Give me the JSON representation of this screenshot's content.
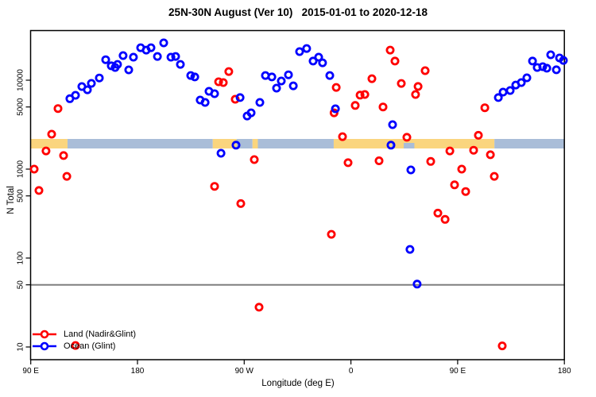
{
  "title": "25N-30N August (Ver 10)   2015-01-01 to 2020-12-18",
  "chart_data": {
    "type": "scatter",
    "title": "25N-30N August (Ver 10)   2015-01-01 to 2020-12-18",
    "xlabel": "Longitude (deg E)",
    "ylabel": "N Total",
    "x_axis": {
      "min": 90,
      "max": 540,
      "note_units": "longitude unwrapped eastward from 90E to 180 (450 deg span)",
      "ticks": [
        {
          "lon": 90,
          "label": "90 E"
        },
        {
          "lon": 180,
          "label": "180"
        },
        {
          "lon": 270,
          "label": "90 W"
        },
        {
          "lon": 360,
          "label": "0"
        },
        {
          "lon": 450,
          "label": "90 E"
        },
        {
          "lon": 540,
          "label": "180"
        }
      ]
    },
    "y_axis": {
      "log": true,
      "min": 7,
      "max": 36000,
      "ticks": [
        10,
        50,
        100,
        500,
        1000,
        5000,
        10000
      ]
    },
    "reference_line": {
      "y": 50,
      "color": "#7F7F7F"
    },
    "land_ocean_band": {
      "value_center": 2000,
      "land_color": "#FAD57E",
      "ocean_color": "#A9BDD8",
      "segments": [
        {
          "type": "land",
          "from": 90,
          "to": 121
        },
        {
          "type": "ocean",
          "from": 121,
          "to": 243.5
        },
        {
          "type": "land",
          "from": 243.5,
          "to": 263.5
        },
        {
          "type": "ocean",
          "from": 263.5,
          "to": 277
        },
        {
          "type": "land",
          "from": 277,
          "to": 281.5
        },
        {
          "type": "ocean",
          "from": 281.5,
          "to": 345.5
        },
        {
          "type": "land",
          "from": 345.5,
          "to": 481
        },
        {
          "type": "ocean",
          "from": 481,
          "to": 540
        }
      ],
      "ocean_inlets": [
        {
          "from": 394.5,
          "to": 397
        },
        {
          "from": 404.5,
          "to": 413.5
        }
      ]
    },
    "legend": {
      "position": "bottom-left"
    },
    "series": [
      {
        "name": "Land (Nadir&Glint)",
        "color": "#FF0000",
        "points": [
          [
            113.0,
            4800
          ],
          [
            107.6,
            2470
          ],
          [
            102.9,
            1600
          ],
          [
            117.7,
            1420
          ],
          [
            92.9,
            1000
          ],
          [
            120.4,
            830
          ],
          [
            96.9,
            575
          ],
          [
            257.0,
            12500
          ],
          [
            248.4,
            9600
          ],
          [
            252.4,
            9400
          ],
          [
            262.4,
            6100
          ],
          [
            278.5,
            1280
          ],
          [
            245.0,
            640
          ],
          [
            267.1,
            410
          ],
          [
            282.5,
            28
          ],
          [
            127.7,
            10.4
          ],
          [
            347.6,
            8300
          ],
          [
            345.8,
            4300
          ],
          [
            363.6,
            5200
          ],
          [
            367.7,
            6800
          ],
          [
            371.7,
            6900
          ],
          [
            377.7,
            10400
          ],
          [
            387.1,
            5000
          ],
          [
            393.1,
            21800
          ],
          [
            397.1,
            16400
          ],
          [
            402.5,
            9200
          ],
          [
            414.5,
            6900
          ],
          [
            416.6,
            8500
          ],
          [
            422.6,
            12800
          ],
          [
            352.9,
            2320
          ],
          [
            407.2,
            2280
          ],
          [
            472.9,
            4900
          ],
          [
            467.5,
            2400
          ],
          [
            443.4,
            1600
          ],
          [
            463.5,
            1630
          ],
          [
            477.6,
            1450
          ],
          [
            357.6,
            1180
          ],
          [
            383.7,
            1240
          ],
          [
            427.3,
            1220
          ],
          [
            453.4,
            1000
          ],
          [
            480.9,
            830
          ],
          [
            447.4,
            665
          ],
          [
            456.8,
            560
          ],
          [
            433.3,
            320
          ],
          [
            439.4,
            272
          ],
          [
            343.5,
            185
          ],
          [
            487.6,
            10.3
          ]
        ]
      },
      {
        "name": "Ocean (Glint)",
        "color": "#0000FF",
        "points": [
          [
            123.0,
            6200
          ],
          [
            127.7,
            6760
          ],
          [
            133.1,
            8480
          ],
          [
            137.8,
            7800
          ],
          [
            141.1,
            9210
          ],
          [
            147.8,
            10600
          ],
          [
            153.2,
            17000
          ],
          [
            157.9,
            14500
          ],
          [
            161.2,
            13900
          ],
          [
            163.2,
            15060
          ],
          [
            167.9,
            18900
          ],
          [
            172.6,
            13060
          ],
          [
            176.6,
            18150
          ],
          [
            182.7,
            23200
          ],
          [
            187.4,
            21800
          ],
          [
            191.4,
            23200
          ],
          [
            196.8,
            18500
          ],
          [
            202.1,
            26300
          ],
          [
            208.2,
            18150
          ],
          [
            212.2,
            18500
          ],
          [
            216.2,
            15060
          ],
          [
            224.9,
            11280
          ],
          [
            228.3,
            10870
          ],
          [
            232.9,
            5980
          ],
          [
            237.0,
            5620
          ],
          [
            240.3,
            7500
          ],
          [
            245.0,
            7050
          ],
          [
            266.5,
            6370
          ],
          [
            272.5,
            3960
          ],
          [
            275.8,
            4300
          ],
          [
            283.2,
            5620
          ],
          [
            287.9,
            11280
          ],
          [
            293.3,
            10870
          ],
          [
            297.3,
            8150
          ],
          [
            301.3,
            9800
          ],
          [
            307.3,
            11510
          ],
          [
            311.4,
            8650
          ],
          [
            316.7,
            20950
          ],
          [
            322.7,
            22700
          ],
          [
            328.1,
            16400
          ],
          [
            332.8,
            18150
          ],
          [
            336.1,
            15700
          ],
          [
            342.2,
            11280
          ],
          [
            346.9,
            4770
          ],
          [
            250.4,
            1510
          ],
          [
            263.1,
            1860
          ],
          [
            393.8,
            1860
          ],
          [
            395.1,
            3160
          ],
          [
            410.5,
            980
          ],
          [
            409.8,
            125
          ],
          [
            415.8,
            51
          ],
          [
            484.3,
            6370
          ],
          [
            488.3,
            7350
          ],
          [
            494.3,
            7660
          ],
          [
            499.0,
            8830
          ],
          [
            503.7,
            9400
          ],
          [
            508.4,
            10640
          ],
          [
            513.1,
            16400
          ],
          [
            517.1,
            13900
          ],
          [
            521.8,
            14180
          ],
          [
            525.2,
            13640
          ],
          [
            528.5,
            19300
          ],
          [
            533.2,
            13100
          ],
          [
            535.9,
            17800
          ],
          [
            539.2,
            16700
          ]
        ]
      }
    ]
  }
}
